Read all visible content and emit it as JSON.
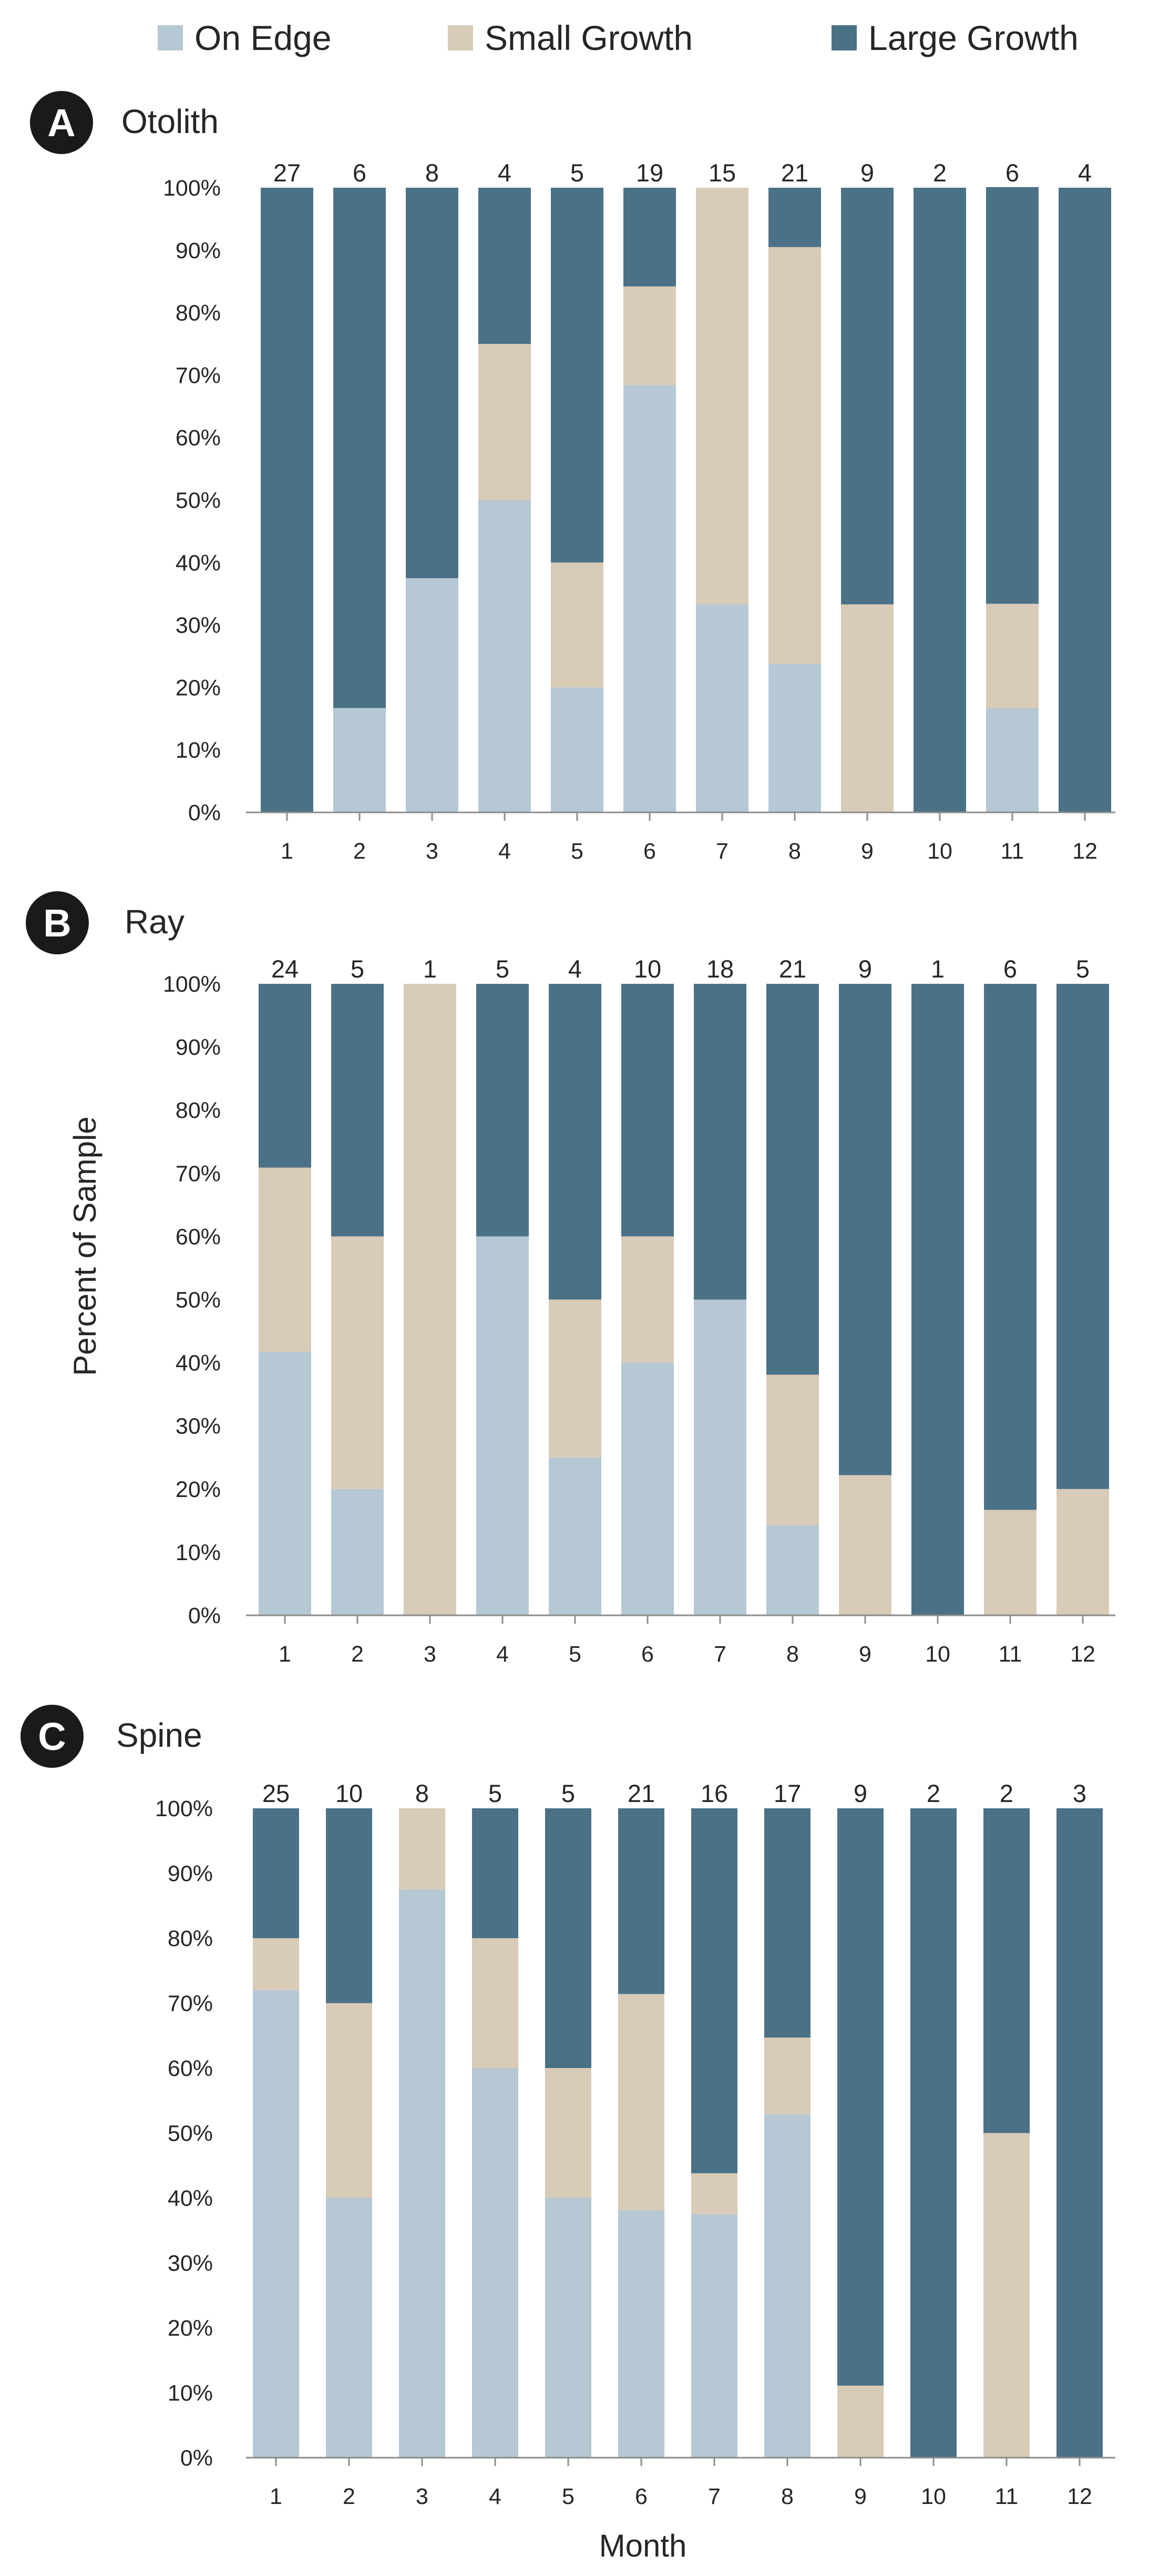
{
  "legend": [
    {
      "label": "On Edge",
      "color": "#b5c8d4"
    },
    {
      "label": "Small Growth",
      "color": "#d8cbb7"
    },
    {
      "label": "Large Growth",
      "color": "#4b7186"
    }
  ],
  "y_axis_title": "Percent of Sample",
  "x_axis_title": "Month",
  "chart_data": [
    {
      "type": "bar",
      "stacked": true,
      "panel": "A",
      "title": "Otolith",
      "categories": [
        "1",
        "2",
        "3",
        "4",
        "5",
        "6",
        "7",
        "8",
        "9",
        "10",
        "11",
        "12"
      ],
      "sample_sizes": [
        "27",
        "6",
        "8",
        "4",
        "5",
        "19",
        "15",
        "21",
        "9",
        "2",
        "6",
        "4"
      ],
      "ylim": [
        0,
        100
      ],
      "yticks": [
        "0%",
        "10%",
        "20%",
        "30%",
        "40%",
        "50%",
        "60%",
        "70%",
        "80%",
        "90%",
        "100%"
      ],
      "series": [
        {
          "name": "On Edge",
          "values": [
            0,
            16.7,
            37.5,
            50,
            20,
            68.4,
            33.3,
            23.8,
            0,
            0,
            16.7,
            0
          ]
        },
        {
          "name": "Small Growth",
          "values": [
            0,
            0,
            0,
            25,
            20,
            15.8,
            66.7,
            66.7,
            33.3,
            0,
            16.7,
            0
          ]
        },
        {
          "name": "Large Growth",
          "values": [
            100,
            83.3,
            62.5,
            25,
            60,
            15.8,
            0,
            9.5,
            66.7,
            100,
            66.7,
            100
          ]
        }
      ]
    },
    {
      "type": "bar",
      "stacked": true,
      "panel": "B",
      "title": "Ray",
      "categories": [
        "1",
        "2",
        "3",
        "4",
        "5",
        "6",
        "7",
        "8",
        "9",
        "10",
        "11",
        "12"
      ],
      "sample_sizes": [
        "24",
        "5",
        "1",
        "5",
        "4",
        "10",
        "18",
        "21",
        "9",
        "1",
        "6",
        "5"
      ],
      "ylim": [
        0,
        100
      ],
      "yticks": [
        "0%",
        "10%",
        "20%",
        "30%",
        "40%",
        "50%",
        "60%",
        "70%",
        "80%",
        "90%",
        "100%"
      ],
      "series": [
        {
          "name": "On Edge",
          "values": [
            41.7,
            20,
            0,
            60,
            25,
            40,
            50,
            14.3,
            0,
            0,
            0,
            0
          ]
        },
        {
          "name": "Small Growth",
          "values": [
            29.2,
            40,
            100,
            0,
            25,
            20,
            0,
            23.8,
            22.2,
            0,
            16.7,
            20
          ]
        },
        {
          "name": "Large Growth",
          "values": [
            29.1,
            40,
            0,
            40,
            50,
            40,
            50,
            61.9,
            77.8,
            100,
            83.3,
            80
          ]
        }
      ]
    },
    {
      "type": "bar",
      "stacked": true,
      "panel": "C",
      "title": "Spine",
      "categories": [
        "1",
        "2",
        "3",
        "4",
        "5",
        "6",
        "7",
        "8",
        "9",
        "10",
        "11",
        "12"
      ],
      "sample_sizes": [
        "25",
        "10",
        "8",
        "5",
        "5",
        "21",
        "16",
        "17",
        "9",
        "2",
        "2",
        "3"
      ],
      "ylim": [
        0,
        100
      ],
      "yticks": [
        "0%",
        "10%",
        "20%",
        "30%",
        "40%",
        "50%",
        "60%",
        "70%",
        "80%",
        "90%",
        "100%"
      ],
      "series": [
        {
          "name": "On Edge",
          "values": [
            72,
            40,
            87.5,
            60,
            40,
            38.1,
            37.5,
            52.9,
            0,
            0,
            0,
            0
          ]
        },
        {
          "name": "Small Growth",
          "values": [
            8,
            30,
            12.5,
            20,
            20,
            33.3,
            6.3,
            11.8,
            11.1,
            0,
            50,
            0
          ]
        },
        {
          "name": "Large Growth",
          "values": [
            20,
            30,
            0,
            20,
            40,
            28.6,
            56.2,
            35.3,
            88.9,
            100,
            50,
            100
          ]
        }
      ]
    }
  ]
}
